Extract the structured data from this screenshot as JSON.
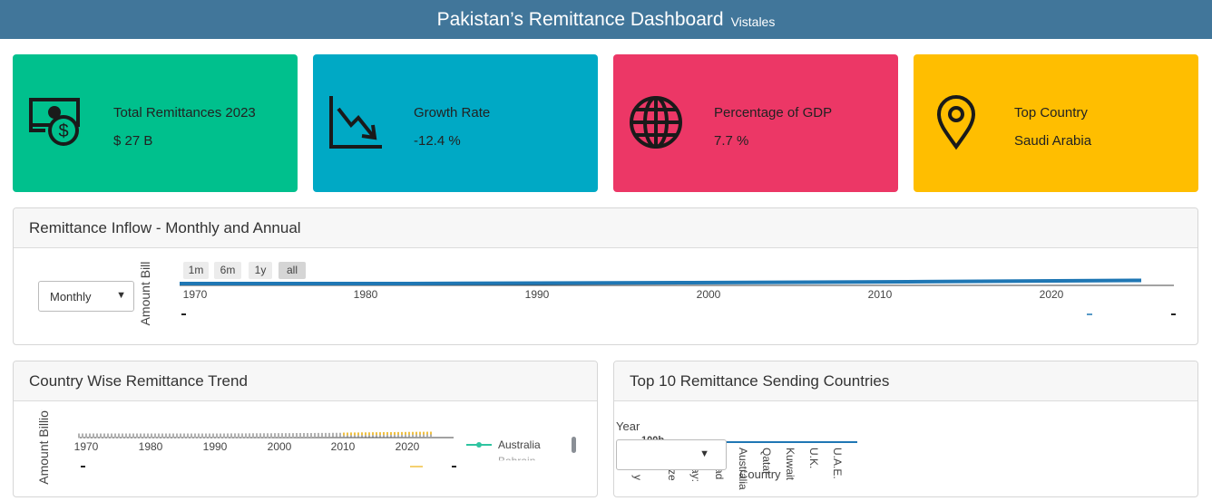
{
  "header": {
    "title": "Pakistan’s Remittance Dashboard",
    "brand": "Vistales",
    "color": "#41769a"
  },
  "kpis": [
    {
      "label": "Total Remittances 2023",
      "value": "$ 27 B",
      "color": "#00c08d",
      "icon": "money-icon"
    },
    {
      "label": "Growth Rate",
      "value": "-12.4 %",
      "color": "#00a9c5",
      "icon": "trend-down-icon"
    },
    {
      "label": "Percentage of GDP",
      "value": "7.7 %",
      "color": "#ec3766",
      "icon": "globe-icon"
    },
    {
      "label": "Top Country",
      "value": "Saudi Arabia",
      "color": "#ffbe00",
      "icon": "location-pin-icon"
    }
  ],
  "inflow": {
    "title": "Remittance Inflow - Monthly and Annual",
    "select_value": "Monthly",
    "ylabel": "Amount Bill",
    "range_buttons": [
      "1m",
      "6m",
      "1y",
      "all"
    ],
    "active_range": "all",
    "x_ticks": [
      "1970",
      "1980",
      "1990",
      "2000",
      "2010",
      "2020"
    ],
    "line_color": "#1f77b4"
  },
  "country_trend": {
    "title": "Country Wise Remittance Trend",
    "ylabel": "Amount Billion",
    "x_ticks": [
      "1970",
      "1980",
      "1990",
      "2000",
      "2010",
      "2020"
    ],
    "legend": [
      "Australia",
      "Bahrain"
    ],
    "legend_color": "#2ec4a0"
  },
  "top10": {
    "title": "Top 10 Remittance Sending Countries",
    "year_label": "Year",
    "y_tick": "100b",
    "xlabel": "Country",
    "countries": [
      "Australia",
      "Qatar",
      "Kuwait",
      "U.K.",
      "U.A.E."
    ],
    "cut_labels": [
      "y",
      "ze",
      "ay:",
      "ad"
    ]
  }
}
